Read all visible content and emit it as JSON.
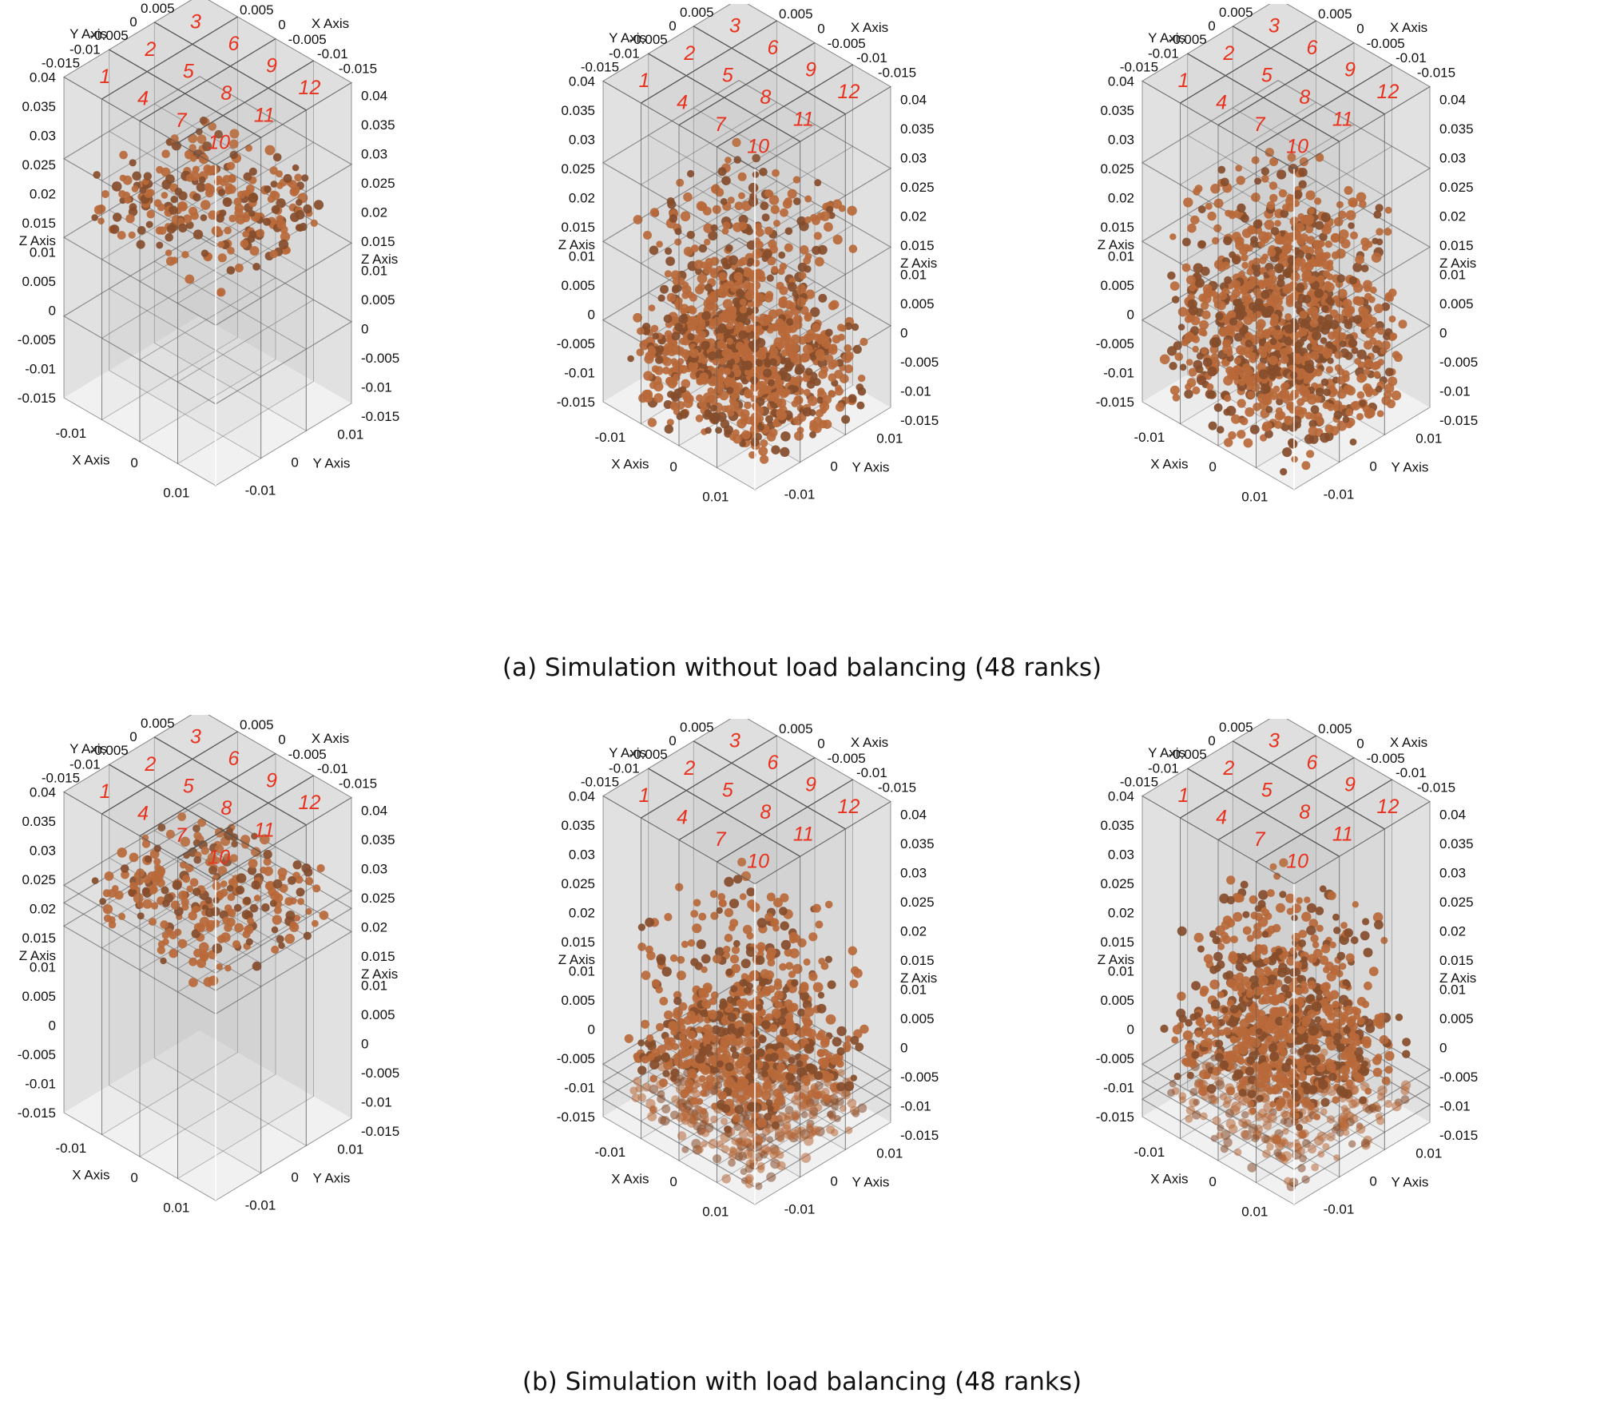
{
  "figure": {
    "rows": [
      {
        "caption": "(a) Simulation without load balancing (48 ranks)",
        "balanced": false,
        "snapshots": [
          {
            "particles": {
              "top_layer_z": [
                0.014,
                0.024
              ],
              "packed_bed_z": null
            }
          },
          {
            "particles": {
              "top_layer_z": [
                0.008,
                0.02
              ],
              "packed_bed_z": [
                -0.016,
                0.002
              ]
            }
          },
          {
            "particles": {
              "top_layer_z": [
                0.01,
                0.02
              ],
              "packed_bed_z": [
                -0.016,
                0.008
              ]
            }
          }
        ]
      },
      {
        "caption": "(b) Simulation with load balancing (48 ranks)",
        "balanced": true,
        "snapshots": [
          {
            "particles": {
              "top_layer_z": [
                0.017,
                0.028
              ],
              "packed_bed_z": null
            }
          },
          {
            "particles": {
              "top_layer_z": [
                0.006,
                0.02
              ],
              "packed_bed_z": [
                -0.016,
                0.001
              ]
            }
          },
          {
            "particles": {
              "top_layer_z": [
                0.01,
                0.019
              ],
              "packed_bed_z": [
                -0.016,
                0.006
              ]
            }
          }
        ]
      }
    ],
    "axes": {
      "x_name": "X Axis",
      "y_name": "Y Axis",
      "z_name": "Z Axis",
      "z_ticks": [
        "0.04",
        "0.035",
        "0.03",
        "0.025",
        "0.02",
        "0.015",
        "0.01",
        "0.005",
        "0",
        "-0.005",
        "-0.01",
        "-0.015"
      ],
      "z_values": [
        0.04,
        0.035,
        0.03,
        0.025,
        0.02,
        0.015,
        0.01,
        0.005,
        0,
        -0.005,
        -0.01,
        -0.015
      ],
      "xy_bottom_ticks": [
        "-0.01",
        "0",
        "0.01"
      ],
      "xy_top_ticks": [
        "-0.015",
        "-0.01",
        "-0.005",
        "0",
        "0.005",
        "0.01",
        "0.015"
      ],
      "range": {
        "x": [
          -0.015,
          0.015
        ],
        "y": [
          -0.015,
          0.015
        ],
        "z": [
          -0.015,
          0.04
        ]
      }
    },
    "domain_grid": {
      "nx": 3,
      "ny": 4,
      "nz_unbalanced": 4,
      "total_ranks": 48
    },
    "rank_labels": [
      "1",
      "2",
      "3",
      "4",
      "5",
      "6",
      "7",
      "8",
      "9",
      "10",
      "11",
      "12"
    ],
    "colors": {
      "particle": "#b8561a",
      "particle_dark": "#7a3208",
      "rank_label": "#e8321e",
      "box_fill": "#b9b9b9",
      "grid_line": "#555555"
    }
  }
}
